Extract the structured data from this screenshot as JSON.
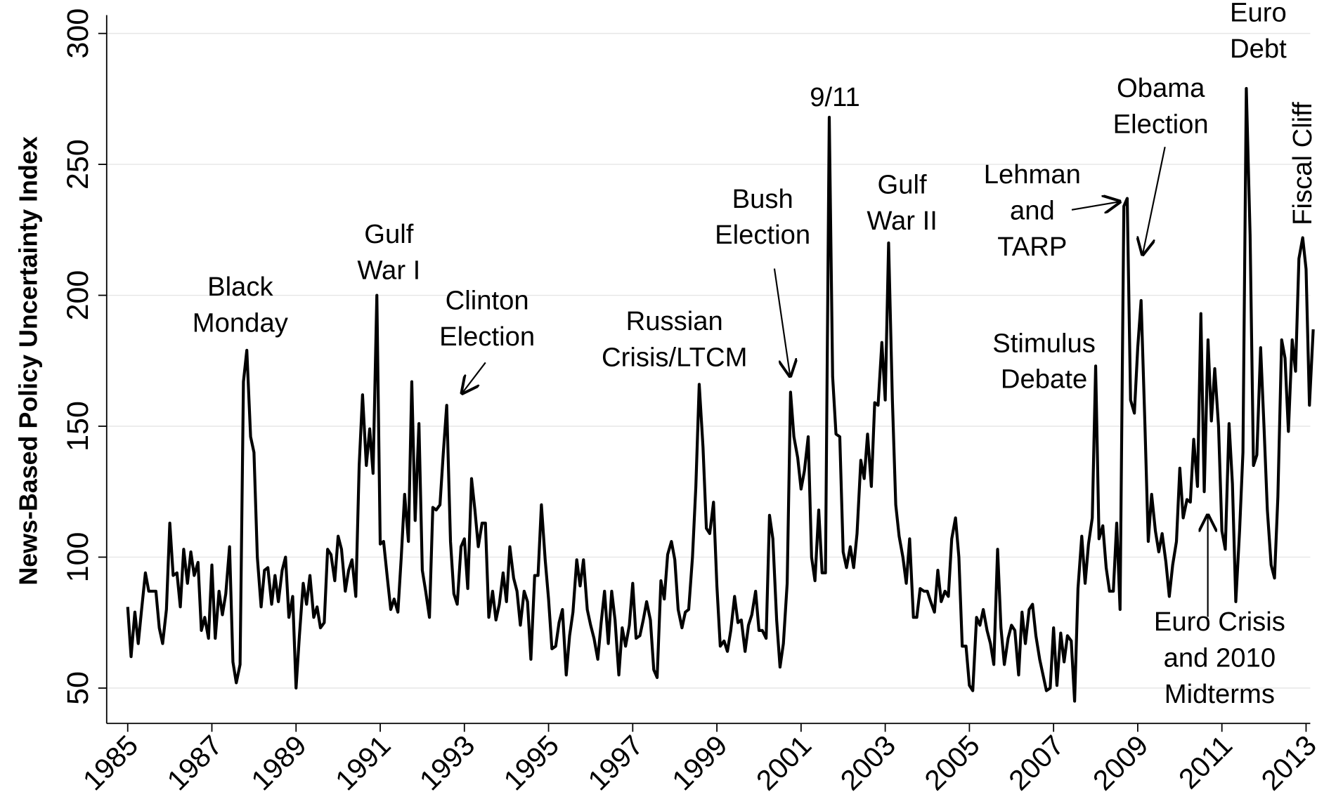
{
  "chart_data": {
    "type": "line",
    "y_label": "News-Based Policy Uncertainty Index",
    "xlim": [
      1984.5,
      2013.1
    ],
    "ylim": [
      36.5,
      307
    ],
    "xticks": [
      1985,
      1987,
      1989,
      1991,
      1993,
      1995,
      1997,
      1999,
      2001,
      2003,
      2005,
      2007,
      2009,
      2011,
      2013
    ],
    "yticks": [
      50,
      100,
      150,
      200,
      250,
      300
    ],
    "grid": true,
    "x": [
      1985,
      1985.08,
      1985.17,
      1985.25,
      1985.33,
      1985.42,
      1985.5,
      1985.58,
      1985.67,
      1985.75,
      1985.83,
      1985.92,
      1986,
      1986.08,
      1986.17,
      1986.25,
      1986.33,
      1986.42,
      1986.5,
      1986.58,
      1986.67,
      1986.75,
      1986.83,
      1986.92,
      1987,
      1987.08,
      1987.17,
      1987.25,
      1987.33,
      1987.42,
      1987.5,
      1987.58,
      1987.67,
      1987.75,
      1987.83,
      1987.92,
      1988,
      1988.08,
      1988.17,
      1988.25,
      1988.33,
      1988.42,
      1988.5,
      1988.58,
      1988.67,
      1988.75,
      1988.83,
      1988.92,
      1989,
      1989.08,
      1989.17,
      1989.25,
      1989.33,
      1989.42,
      1989.5,
      1989.58,
      1989.67,
      1989.75,
      1989.83,
      1989.92,
      1990,
      1990.08,
      1990.17,
      1990.25,
      1990.33,
      1990.42,
      1990.5,
      1990.58,
      1990.67,
      1990.75,
      1990.83,
      1990.92,
      1991,
      1991.08,
      1991.17,
      1991.25,
      1991.33,
      1991.42,
      1991.5,
      1991.58,
      1991.67,
      1991.75,
      1991.83,
      1991.92,
      1992,
      1992.08,
      1992.17,
      1992.25,
      1992.33,
      1992.42,
      1992.5,
      1992.58,
      1992.67,
      1992.75,
      1992.83,
      1992.92,
      1993,
      1993.08,
      1993.17,
      1993.25,
      1993.33,
      1993.42,
      1993.5,
      1993.58,
      1993.67,
      1993.75,
      1993.83,
      1993.92,
      1994,
      1994.08,
      1994.17,
      1994.25,
      1994.33,
      1994.42,
      1994.5,
      1994.58,
      1994.67,
      1994.75,
      1994.83,
      1994.92,
      1995,
      1995.08,
      1995.17,
      1995.25,
      1995.33,
      1995.42,
      1995.5,
      1995.58,
      1995.67,
      1995.75,
      1995.83,
      1995.92,
      1996,
      1996.08,
      1996.17,
      1996.25,
      1996.33,
      1996.42,
      1996.5,
      1996.58,
      1996.67,
      1996.75,
      1996.83,
      1996.92,
      1997,
      1997.08,
      1997.17,
      1997.25,
      1997.33,
      1997.42,
      1997.5,
      1997.58,
      1997.67,
      1997.75,
      1997.83,
      1997.92,
      1998,
      1998.08,
      1998.17,
      1998.25,
      1998.33,
      1998.42,
      1998.5,
      1998.58,
      1998.67,
      1998.75,
      1998.83,
      1998.92,
      1999,
      1999.08,
      1999.17,
      1999.25,
      1999.33,
      1999.42,
      1999.5,
      1999.58,
      1999.67,
      1999.75,
      1999.83,
      1999.92,
      2000,
      2000.08,
      2000.17,
      2000.25,
      2000.33,
      2000.42,
      2000.5,
      2000.58,
      2000.67,
      2000.75,
      2000.83,
      2000.92,
      2001,
      2001.08,
      2001.17,
      2001.25,
      2001.33,
      2001.42,
      2001.5,
      2001.58,
      2001.67,
      2001.75,
      2001.83,
      2001.92,
      2002,
      2002.08,
      2002.17,
      2002.25,
      2002.33,
      2002.42,
      2002.5,
      2002.58,
      2002.67,
      2002.75,
      2002.83,
      2002.92,
      2003,
      2003.08,
      2003.17,
      2003.25,
      2003.33,
      2003.42,
      2003.5,
      2003.58,
      2003.67,
      2003.75,
      2003.83,
      2003.92,
      2004,
      2004.08,
      2004.17,
      2004.25,
      2004.33,
      2004.42,
      2004.5,
      2004.58,
      2004.67,
      2004.75,
      2004.83,
      2004.92,
      2005,
      2005.08,
      2005.17,
      2005.25,
      2005.33,
      2005.42,
      2005.5,
      2005.58,
      2005.67,
      2005.75,
      2005.83,
      2005.92,
      2006,
      2006.08,
      2006.17,
      2006.25,
      2006.33,
      2006.42,
      2006.5,
      2006.58,
      2006.67,
      2006.75,
      2006.83,
      2006.92,
      2007,
      2007.08,
      2007.17,
      2007.25,
      2007.33,
      2007.42,
      2007.5,
      2007.58,
      2007.67,
      2007.75,
      2007.83,
      2007.92,
      2008,
      2008.08,
      2008.17,
      2008.25,
      2008.33,
      2008.42,
      2008.5,
      2008.58,
      2008.67,
      2008.75,
      2008.83,
      2008.92,
      2009,
      2009.08,
      2009.17,
      2009.25,
      2009.33,
      2009.42,
      2009.5,
      2009.58,
      2009.67,
      2009.75,
      2009.83,
      2009.92,
      2010,
      2010.08,
      2010.17,
      2010.25,
      2010.33,
      2010.42,
      2010.5,
      2010.58,
      2010.67,
      2010.75,
      2010.83,
      2010.92,
      2011,
      2011.08,
      2011.17,
      2011.25,
      2011.33,
      2011.42,
      2011.5,
      2011.58,
      2011.67,
      2011.75,
      2011.83,
      2011.92,
      2012,
      2012.08,
      2012.17,
      2012.25,
      2012.33,
      2012.42,
      2012.5,
      2012.58,
      2012.67,
      2012.75,
      2012.83,
      2012.92,
      2013,
      2013.08,
      2013.17
    ],
    "series": [
      {
        "color": "#000000",
        "values": [
          81,
          62,
          79,
          67,
          80,
          94,
          87,
          87,
          87,
          73,
          67,
          80,
          113,
          93,
          94,
          81,
          103,
          90,
          102,
          93,
          98,
          72,
          77,
          69,
          97,
          69,
          87,
          78,
          86,
          104,
          60,
          52,
          59,
          167,
          179,
          146,
          140,
          100,
          81,
          95,
          96,
          82,
          93,
          83,
          95,
          100,
          77,
          85,
          50,
          70,
          90,
          82,
          93,
          77,
          81,
          73,
          75,
          103,
          101,
          91,
          108,
          103,
          87,
          95,
          99,
          85,
          135,
          162,
          135,
          149,
          132,
          200,
          105,
          106,
          92,
          80,
          84,
          79,
          100,
          124,
          106,
          167,
          114,
          151,
          95,
          87,
          77,
          119,
          118,
          120,
          140,
          158,
          106,
          86,
          82,
          104,
          107,
          88,
          130,
          118,
          104,
          113,
          113,
          77,
          87,
          76,
          82,
          94,
          83,
          104,
          92,
          87,
          74,
          87,
          83,
          61,
          93,
          93,
          120,
          99,
          84,
          65,
          66,
          75,
          80,
          55,
          70,
          79,
          99,
          89,
          99,
          80,
          74,
          69,
          61,
          75,
          87,
          67,
          87,
          76,
          55,
          73,
          66,
          74,
          90,
          69,
          70,
          76,
          83,
          76,
          57,
          54,
          91,
          84,
          101,
          106,
          99,
          80,
          73,
          79,
          80,
          100,
          127,
          166,
          142,
          111,
          109,
          121,
          89,
          66,
          68,
          64,
          72,
          85,
          75,
          76,
          64,
          74,
          78,
          87,
          72,
          72,
          69,
          116,
          107,
          76,
          58,
          67,
          90,
          163,
          146,
          138,
          126,
          133,
          146,
          100,
          91,
          118,
          94,
          94,
          268,
          169,
          147,
          146,
          102,
          96,
          104,
          96,
          109,
          137,
          130,
          147,
          127,
          159,
          158,
          182,
          160,
          220,
          160,
          120,
          108,
          100,
          90,
          107,
          77,
          77,
          88,
          87,
          87,
          83,
          79,
          95,
          83,
          87,
          85,
          107,
          115,
          100,
          66,
          66,
          51,
          49,
          77,
          74,
          80,
          72,
          67,
          59,
          103,
          73,
          59,
          69,
          74,
          72,
          55,
          79,
          67,
          80,
          82,
          70,
          61,
          55,
          49,
          50,
          73,
          51,
          71,
          60,
          70,
          68,
          45,
          88,
          108,
          90,
          105,
          115,
          173,
          107,
          112,
          96,
          87,
          87,
          113,
          80,
          234,
          237,
          160,
          155,
          180,
          198,
          151,
          106,
          124,
          110,
          102,
          109,
          98,
          85,
          97,
          106,
          134,
          115,
          122,
          121,
          145,
          127,
          193,
          125,
          183,
          152,
          172,
          150,
          110,
          103,
          151,
          128,
          83,
          110,
          140,
          279,
          223,
          135,
          139,
          180,
          150,
          118,
          97,
          92,
          123,
          183,
          176,
          148,
          183,
          171,
          214,
          222,
          210,
          158,
          187
        ]
      }
    ],
    "annotations": [
      {
        "lines": [
          "Black",
          "Monday"
        ]
      },
      {
        "lines": [
          "Gulf",
          "War I"
        ]
      },
      {
        "lines": [
          "Clinton",
          "Election"
        ]
      },
      {
        "lines": [
          "Russian",
          "Crisis/LTCM"
        ]
      },
      {
        "lines": [
          "Bush",
          "Election"
        ]
      },
      {
        "lines": [
          "9/11"
        ]
      },
      {
        "lines": [
          "Gulf",
          "War II"
        ]
      },
      {
        "lines": [
          "Lehman",
          "and",
          "TARP"
        ]
      },
      {
        "lines": [
          "Obama",
          "Election"
        ]
      },
      {
        "lines": [
          "Stimulus",
          "Debate"
        ]
      },
      {
        "lines": [
          "Euro Crisis",
          "and 2010",
          "Midterms"
        ]
      },
      {
        "lines": [
          "Euro",
          "Debt"
        ]
      },
      {
        "lines": [
          "Fiscal Cliff"
        ]
      }
    ]
  }
}
